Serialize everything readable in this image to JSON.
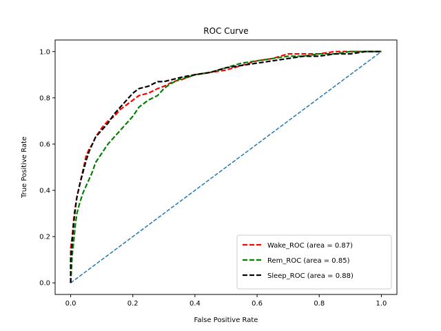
{
  "chart_data": {
    "type": "line",
    "title": "ROC Curve",
    "xlabel": "False Positive Rate",
    "ylabel": "True Positive Rate",
    "xlim": [
      -0.05,
      1.05
    ],
    "ylim": [
      -0.05,
      1.05
    ],
    "xticks": [
      0.0,
      0.2,
      0.4,
      0.6,
      0.8,
      1.0
    ],
    "yticks": [
      0.0,
      0.2,
      0.4,
      0.6,
      0.8,
      1.0
    ],
    "xtick_labels": [
      "0.0",
      "0.2",
      "0.4",
      "0.6",
      "0.8",
      "1.0"
    ],
    "ytick_labels": [
      "0.0",
      "0.2",
      "0.4",
      "0.6",
      "0.8",
      "1.0"
    ],
    "grid": false,
    "legend_position": "lower-right",
    "series": [
      {
        "name": "Wake_ROC (area = 0.87)",
        "color": "#ff0000",
        "dash": "dashed",
        "x": [
          0,
          0,
          0.005,
          0.01,
          0.015,
          0.02,
          0.03,
          0.04,
          0.05,
          0.06,
          0.07,
          0.08,
          0.09,
          0.1,
          0.12,
          0.14,
          0.16,
          0.18,
          0.2,
          0.22,
          0.25,
          0.28,
          0.3,
          0.33,
          0.36,
          0.4,
          0.45,
          0.5,
          0.55,
          0.6,
          0.65,
          0.7,
          0.75,
          0.8,
          0.85,
          0.9,
          0.95,
          1.0
        ],
        "y": [
          0,
          0.15,
          0.2,
          0.28,
          0.33,
          0.37,
          0.43,
          0.49,
          0.55,
          0.58,
          0.6,
          0.63,
          0.65,
          0.67,
          0.7,
          0.72,
          0.75,
          0.77,
          0.79,
          0.81,
          0.82,
          0.84,
          0.85,
          0.87,
          0.88,
          0.9,
          0.91,
          0.92,
          0.94,
          0.96,
          0.97,
          0.99,
          0.99,
          0.99,
          1.0,
          1.0,
          1.0,
          1.0
        ]
      },
      {
        "name": "Rem_ROC (area = 0.85)",
        "color": "#008000",
        "dash": "dashed",
        "x": [
          0,
          0.005,
          0.01,
          0.015,
          0.02,
          0.03,
          0.04,
          0.05,
          0.06,
          0.07,
          0.08,
          0.1,
          0.12,
          0.14,
          0.16,
          0.18,
          0.2,
          0.22,
          0.25,
          0.28,
          0.3,
          0.32,
          0.35,
          0.38,
          0.4,
          0.45,
          0.5,
          0.55,
          0.6,
          0.65,
          0.7,
          0.75,
          0.8,
          0.85,
          0.9,
          0.95,
          1.0
        ],
        "y": [
          0,
          0.12,
          0.18,
          0.25,
          0.3,
          0.35,
          0.39,
          0.42,
          0.45,
          0.48,
          0.52,
          0.56,
          0.6,
          0.63,
          0.66,
          0.69,
          0.72,
          0.76,
          0.79,
          0.81,
          0.84,
          0.86,
          0.88,
          0.89,
          0.9,
          0.91,
          0.93,
          0.95,
          0.96,
          0.97,
          0.98,
          0.98,
          0.99,
          0.99,
          1.0,
          1.0,
          1.0
        ]
      },
      {
        "name": "Sleep_ROC (area = 0.88)",
        "color": "#000000",
        "dash": "dashed",
        "x": [
          0,
          0,
          0.005,
          0.01,
          0.015,
          0.02,
          0.03,
          0.04,
          0.05,
          0.06,
          0.07,
          0.08,
          0.1,
          0.12,
          0.14,
          0.16,
          0.18,
          0.2,
          0.22,
          0.25,
          0.28,
          0.3,
          0.33,
          0.36,
          0.4,
          0.45,
          0.5,
          0.55,
          0.6,
          0.65,
          0.7,
          0.75,
          0.8,
          0.85,
          0.9,
          0.95,
          1.0
        ],
        "y": [
          0,
          0.1,
          0.18,
          0.26,
          0.32,
          0.37,
          0.43,
          0.48,
          0.53,
          0.57,
          0.6,
          0.63,
          0.66,
          0.69,
          0.73,
          0.76,
          0.79,
          0.82,
          0.84,
          0.85,
          0.87,
          0.87,
          0.88,
          0.89,
          0.9,
          0.91,
          0.93,
          0.94,
          0.95,
          0.96,
          0.97,
          0.98,
          0.98,
          0.99,
          0.99,
          1.0,
          1.0
        ]
      },
      {
        "name": "",
        "color": "#1f77b4",
        "dash": "dashed-thin",
        "x": [
          0,
          1.0
        ],
        "y": [
          0,
          1.0
        ]
      }
    ]
  }
}
